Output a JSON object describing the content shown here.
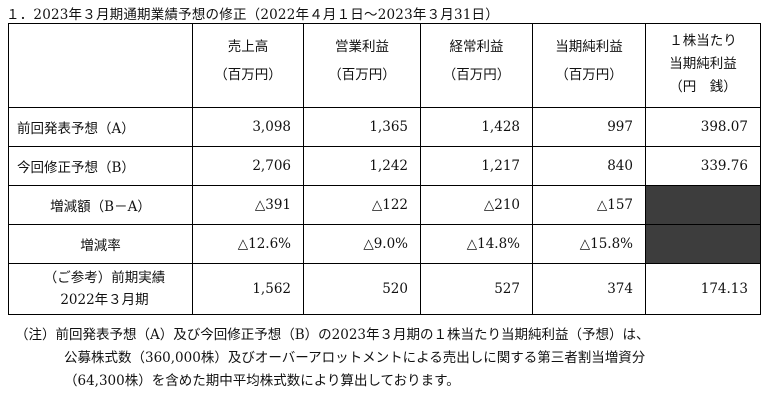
{
  "heading": "１．2023年３月期通期業績予想の修正（2022年４月１日～2023年３月31日）",
  "columns": [
    {
      "label": "売上高",
      "unit": "（百万円）"
    },
    {
      "label": "営業利益",
      "unit": "（百万円）"
    },
    {
      "label": "経常利益",
      "unit": "（百万円）"
    },
    {
      "label": "当期純利益",
      "unit": "（百万円）"
    },
    {
      "label_lines": [
        "１株当たり",
        "当期純利益"
      ],
      "unit": "（円　銭）"
    }
  ],
  "rows": [
    {
      "label": "前回発表予想（A）",
      "values": [
        "3,098",
        "1,365",
        "1,428",
        "997",
        "398.07"
      ]
    },
    {
      "label": "今回修正予想（B）",
      "values": [
        "2,706",
        "1,242",
        "1,217",
        "840",
        "339.76"
      ]
    },
    {
      "label": "増減額（B－A）",
      "values": [
        "△391",
        "△122",
        "△210",
        "△157",
        ""
      ],
      "shaded_last": true
    },
    {
      "label": "増減率",
      "values": [
        "△12.6%",
        "△9.0%",
        "△14.8%",
        "△15.8%",
        ""
      ],
      "shaded_last": true
    },
    {
      "label_lines": [
        "（ご参考）前期実績",
        "2022年３月期"
      ],
      "values": [
        "1,562",
        "520",
        "527",
        "374",
        "174.13"
      ]
    }
  ],
  "notes": [
    "（注）前回発表予想（A）及び今回修正予想（B）の2023年３月期の１株当たり当期純利益（予想）は、",
    "公募株式数（360,000株）及びオーバーアロットメントによる売出しに関する第三者割当増資分",
    "（64,300株）を含めた期中平均株式数により算出しております。"
  ],
  "colors": {
    "shade": "#3d3d3d",
    "border": "#000000",
    "text": "#111111"
  }
}
